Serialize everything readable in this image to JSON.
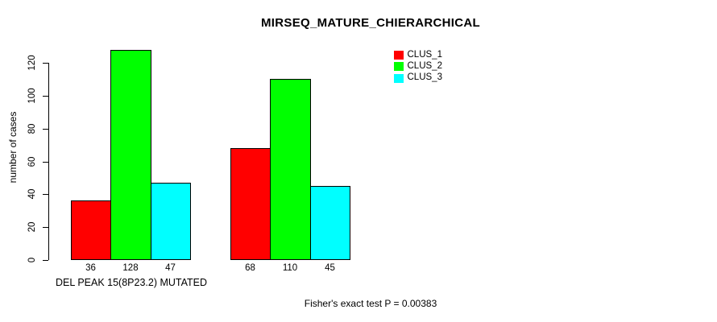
{
  "chart_data": {
    "type": "bar",
    "title": "MIRSEQ_MATURE_CHIERARCHICAL",
    "ylabel": "number of cases",
    "xlabel": "DEL PEAK 15(8P23.2) MUTATED",
    "footer": "Fisher's exact test P = 0.00383",
    "ylim": [
      0,
      120
    ],
    "yticks": [
      0,
      20,
      40,
      60,
      80,
      100,
      120
    ],
    "grid": false,
    "legend_position": "top-right",
    "group_count": 2,
    "series": [
      {
        "name": "CLUS_1",
        "color": "#ff0000",
        "values": [
          36,
          68
        ]
      },
      {
        "name": "CLUS_2",
        "color": "#00ff00",
        "values": [
          128,
          110
        ]
      },
      {
        "name": "CLUS_3",
        "color": "#00ffff",
        "values": [
          47,
          45
        ]
      }
    ],
    "bar_value_labels_shown": true
  }
}
